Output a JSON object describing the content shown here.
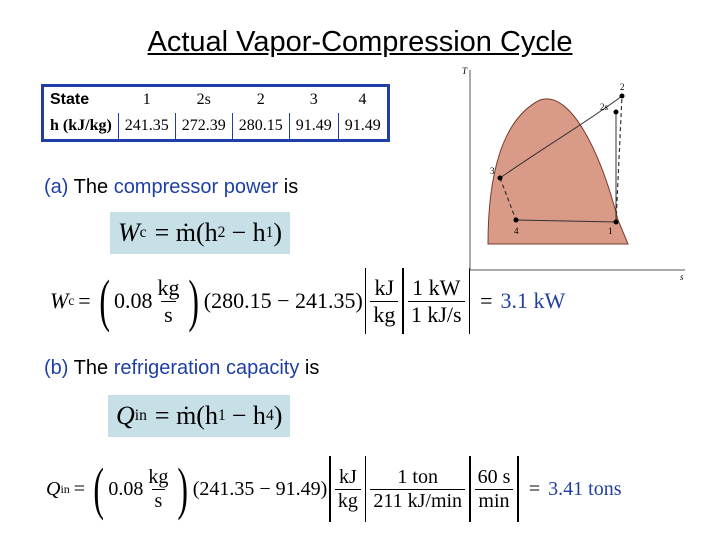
{
  "title": "Actual Vapor-Compression Cycle",
  "table": {
    "row1_label": "State",
    "states": [
      "1",
      "2s",
      "2",
      "3",
      "4"
    ],
    "row2_label": "h (kJ/kg)",
    "h_values": [
      "241.35",
      "272.39",
      "280.15",
      "91.49",
      "91.49"
    ]
  },
  "part_a": {
    "prefix": "(a)",
    "text_1": "The",
    "highlight": "compressor power",
    "text_2": "is",
    "formula_lhs": "W",
    "formula_lhs_sub": "c",
    "formula_rhs": "= ṁ(h",
    "formula_h2_sub": "2",
    "formula_mid": "− h",
    "formula_h1_sub": "1",
    "formula_end": ")",
    "calc_mdot": "0.08",
    "calc_unit_num": "kg",
    "calc_unit_den": "s",
    "calc_diff": "(280.15 − 241.35)",
    "conv1_num": "kJ",
    "conv1_den": "kg",
    "conv2_num": "1 kW",
    "conv2_den": "1 kJ/s",
    "result": "3.1 kW"
  },
  "part_b": {
    "prefix": "(b)",
    "text_1": "The",
    "highlight": "refrigeration capacity",
    "text_2": "is",
    "formula_lhs": "Q",
    "formula_lhs_sub": "in",
    "formula_rhs": "= ṁ(h",
    "formula_h1_sub": "1",
    "formula_mid": "− h",
    "formula_h4_sub": "4",
    "formula_end": ")",
    "calc_mdot": "0.08",
    "calc_unit_num": "kg",
    "calc_unit_den": "s",
    "calc_diff": "(241.35 − 91.49)",
    "conv1_num": "kJ",
    "conv1_den": "kg",
    "conv2_num": "1 ton",
    "conv2_den": "211 kJ/min",
    "conv3_num": "60 s",
    "conv3_den": "min",
    "result": "3.41 tons"
  },
  "diagram": {
    "y_axis_label": "T",
    "x_axis_label": "s",
    "point_labels": [
      "1",
      "2",
      "2s",
      "3",
      "4"
    ],
    "fill_color": "#d99a87",
    "axis_color": "#555555"
  }
}
